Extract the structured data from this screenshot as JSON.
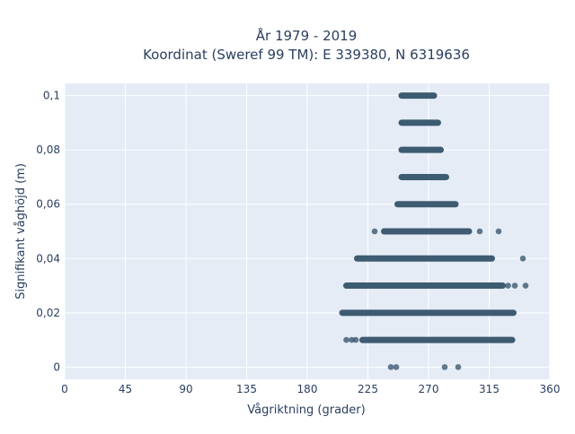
{
  "chart_data": {
    "type": "scatter",
    "title_line1": "År 1979 - 2019",
    "title_line2": "Koordinat (Sweref 99 TM): E 339380, N 6319636",
    "xlabel": "Vågriktning (grader)",
    "ylabel": "Signifikant våghöjd (m)",
    "xlim": [
      0,
      360
    ],
    "ylim": [
      -0.0045,
      0.1045
    ],
    "x_ticks": [
      0,
      45,
      90,
      135,
      180,
      225,
      270,
      315,
      360
    ],
    "x_tick_labels": [
      "0",
      "45",
      "90",
      "135",
      "180",
      "225",
      "270",
      "315",
      "360"
    ],
    "y_ticks": [
      0,
      0.02,
      0.04,
      0.06,
      0.08,
      0.1
    ],
    "y_tick_labels": [
      "0",
      "0,02",
      "0,04",
      "0,06",
      "0,08",
      "0,1"
    ],
    "grid": true,
    "colors": {
      "plot_bg": "#e5ecf6",
      "grid": "#ffffff",
      "marker": "#2f4f66",
      "text": "#2a3f5f"
    },
    "bands": [
      {
        "y": 0.1,
        "x_min": 250,
        "x_max": 274
      },
      {
        "y": 0.09,
        "x_min": 250,
        "x_max": 277
      },
      {
        "y": 0.08,
        "x_min": 250,
        "x_max": 279
      },
      {
        "y": 0.07,
        "x_min": 250,
        "x_max": 283
      },
      {
        "y": 0.06,
        "x_min": 247,
        "x_max": 290
      },
      {
        "y": 0.05,
        "x_min": 237,
        "x_max": 300
      },
      {
        "y": 0.04,
        "x_min": 217,
        "x_max": 317
      },
      {
        "y": 0.03,
        "x_min": 209,
        "x_max": 325
      },
      {
        "y": 0.02,
        "x_min": 206,
        "x_max": 333
      },
      {
        "y": 0.01,
        "x_min": 221,
        "x_max": 332
      }
    ],
    "points": [
      {
        "x": 230,
        "y": 0.05
      },
      {
        "x": 308,
        "y": 0.05
      },
      {
        "x": 322,
        "y": 0.05
      },
      {
        "x": 340,
        "y": 0.04
      },
      {
        "x": 329,
        "y": 0.03
      },
      {
        "x": 334,
        "y": 0.03
      },
      {
        "x": 342,
        "y": 0.03
      },
      {
        "x": 209,
        "y": 0.01
      },
      {
        "x": 213,
        "y": 0.01
      },
      {
        "x": 216,
        "y": 0.01
      },
      {
        "x": 242,
        "y": 0.0
      },
      {
        "x": 246,
        "y": 0.0
      },
      {
        "x": 282,
        "y": 0.0
      },
      {
        "x": 292,
        "y": 0.0
      }
    ]
  }
}
